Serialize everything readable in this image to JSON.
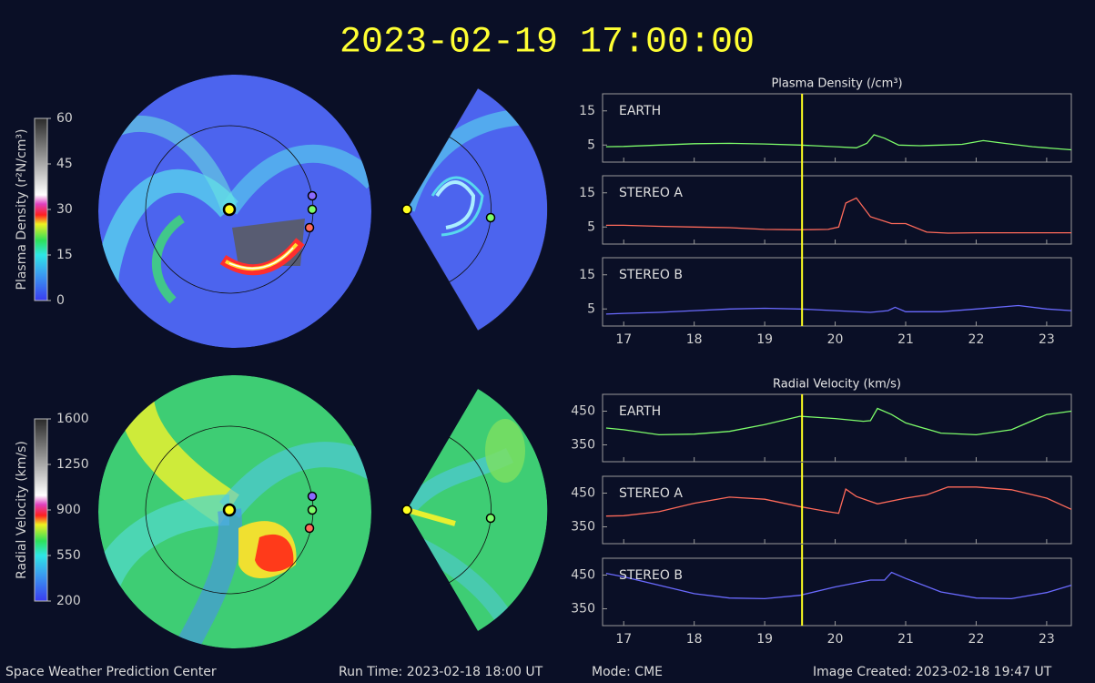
{
  "title": "2023-02-19 17:00:00",
  "footer": {
    "center": "Space Weather Prediction Center",
    "run_time": "Run Time: 2023-02-18 18:00 UT",
    "mode": "Mode: CME",
    "created": "Image Created: 2023-02-18 19:47 UT"
  },
  "colorbars": [
    {
      "label": "Plasma Density (r²N/cm³)",
      "lim": [
        0,
        60
      ],
      "ticks": [
        0,
        15,
        30,
        45,
        60
      ]
    },
    {
      "label": "Radial Velocity (km/s)",
      "lim": [
        200,
        1600
      ],
      "ticks": [
        200,
        550,
        900,
        1250,
        1600
      ]
    }
  ],
  "chart_data": [
    {
      "type": "line",
      "title": "Plasma Density (/cm³)",
      "x": [
        16.75,
        17,
        17.5,
        18,
        18.5,
        19,
        19.5,
        20,
        20.3,
        20.45,
        20.55,
        20.7,
        20.9,
        21.2,
        21.5,
        21.8,
        22.1,
        22.4,
        22.8,
        23.1,
        23.35
      ],
      "series": [
        {
          "name": "EARTH",
          "color": "#7dfc6a",
          "values": [
            4.5,
            4.6,
            5,
            5.4,
            5.5,
            5.3,
            5,
            4.5,
            4.2,
            5.5,
            8,
            7,
            5,
            4.8,
            5,
            5.2,
            6.3,
            5.5,
            4.5,
            4,
            3.6
          ]
        }
      ],
      "xlim": [
        16.7,
        23.35
      ],
      "xticks": [
        17,
        18,
        19,
        20,
        21,
        22,
        23
      ],
      "ylim": [
        0,
        20
      ],
      "yticks": [
        5,
        15
      ],
      "marker_x": 19.53,
      "show_x_labels": false
    },
    {
      "type": "line",
      "x": [
        16.75,
        17,
        17.5,
        18,
        18.5,
        19,
        19.5,
        19.9,
        20.05,
        20.15,
        20.3,
        20.5,
        20.8,
        21,
        21.3,
        21.6,
        22,
        22.5,
        23,
        23.35
      ],
      "series": [
        {
          "name": "STEREO A",
          "color": "#ff6a5a",
          "values": [
            5.5,
            5.5,
            5.2,
            5,
            4.8,
            4.3,
            4.2,
            4.3,
            5,
            12,
            13.5,
            8,
            6,
            6,
            3.5,
            3.2,
            3.3,
            3.3,
            3.3,
            3.3
          ]
        }
      ],
      "xlim": [
        16.7,
        23.35
      ],
      "xticks": [
        17,
        18,
        19,
        20,
        21,
        22,
        23
      ],
      "ylim": [
        0,
        20
      ],
      "yticks": [
        5,
        15
      ],
      "marker_x": 19.53,
      "show_x_labels": false
    },
    {
      "type": "line",
      "x": [
        16.75,
        17,
        17.5,
        18,
        18.5,
        19,
        19.5,
        20,
        20.5,
        20.75,
        20.85,
        21,
        21.5,
        22,
        22.6,
        23,
        23.35
      ],
      "series": [
        {
          "name": "STEREO B",
          "color": "#6a6aff",
          "values": [
            3.5,
            3.7,
            4,
            4.5,
            5,
            5.2,
            5,
            4.5,
            4,
            4.5,
            5.5,
            4.2,
            4.2,
            5,
            6,
            5,
            4.5
          ]
        }
      ],
      "xlim": [
        16.7,
        23.35
      ],
      "xticks": [
        17,
        18,
        19,
        20,
        21,
        22,
        23
      ],
      "ylim": [
        0,
        20
      ],
      "yticks": [
        5,
        15
      ],
      "marker_x": 19.53,
      "show_x_labels": true
    },
    {
      "type": "line",
      "title": "Radial Velocity (km/s)",
      "x": [
        16.75,
        17,
        17.5,
        18,
        18.5,
        19,
        19.5,
        20,
        20.4,
        20.5,
        20.6,
        20.8,
        21,
        21.5,
        22,
        22.5,
        23,
        23.35
      ],
      "series": [
        {
          "name": "EARTH",
          "color": "#7dfc6a",
          "values": [
            400,
            395,
            380,
            382,
            390,
            410,
            435,
            428,
            420,
            422,
            458,
            440,
            415,
            385,
            380,
            395,
            440,
            450
          ]
        }
      ],
      "xlim": [
        16.7,
        23.35
      ],
      "xticks": [
        17,
        18,
        19,
        20,
        21,
        22,
        23
      ],
      "ylim": [
        300,
        500
      ],
      "yticks": [
        350,
        450
      ],
      "marker_x": 19.53,
      "show_x_labels": false
    },
    {
      "type": "line",
      "x": [
        16.75,
        17,
        17.5,
        18,
        18.5,
        19,
        19.5,
        19.9,
        20.05,
        20.15,
        20.3,
        20.6,
        21,
        21.3,
        21.6,
        22,
        22.5,
        23,
        23.35
      ],
      "series": [
        {
          "name": "STEREO A",
          "color": "#ff6a5a",
          "values": [
            382,
            383,
            395,
            420,
            438,
            432,
            410,
            395,
            390,
            462,
            440,
            418,
            435,
            445,
            468,
            468,
            460,
            435,
            402
          ]
        }
      ],
      "xlim": [
        16.7,
        23.35
      ],
      "xticks": [
        17,
        18,
        19,
        20,
        21,
        22,
        23
      ],
      "ylim": [
        300,
        500
      ],
      "yticks": [
        350,
        450
      ],
      "marker_x": 19.53,
      "show_x_labels": false
    },
    {
      "type": "line",
      "x": [
        16.75,
        17,
        17.5,
        18,
        18.5,
        19,
        19.5,
        20,
        20.5,
        20.7,
        20.8,
        21,
        21.5,
        22,
        22.5,
        23,
        23.35
      ],
      "series": [
        {
          "name": "STEREO B",
          "color": "#6a6aff",
          "values": [
            455,
            445,
            420,
            395,
            382,
            380,
            390,
            415,
            435,
            435,
            458,
            440,
            400,
            382,
            380,
            398,
            420
          ]
        }
      ],
      "xlim": [
        16.7,
        23.35
      ],
      "xticks": [
        17,
        18,
        19,
        20,
        21,
        22,
        23
      ],
      "ylim": [
        300,
        500
      ],
      "yticks": [
        350,
        450
      ],
      "marker_x": 19.53,
      "show_x_labels": true
    }
  ]
}
